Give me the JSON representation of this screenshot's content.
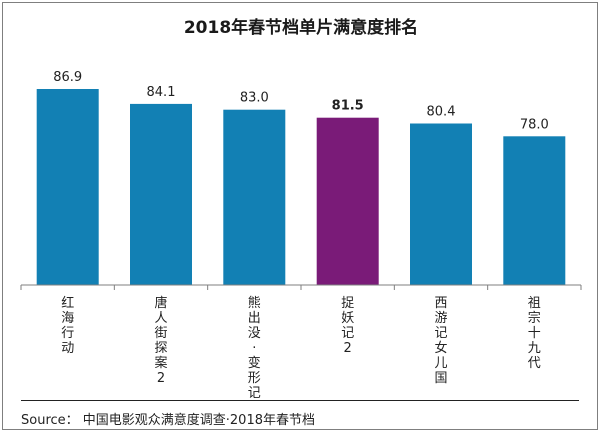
{
  "chart_data": {
    "type": "bar",
    "title": "2018年春节档单片满意度排名",
    "categories": [
      "红海行动",
      "唐人街探案2",
      "熊出没·变形记",
      "捉妖记2",
      "西游记女儿国",
      "祖宗十九代"
    ],
    "values": [
      86.9,
      84.1,
      83.0,
      81.5,
      80.4,
      78.0
    ],
    "value_labels": [
      "86.9",
      "84.1",
      "83.0",
      "81.5",
      "80.4",
      "78.0"
    ],
    "highlight_index": 3,
    "colors": {
      "default": "#1280b4",
      "highlight": "#7a1b78"
    },
    "ylim": [
      50,
      90
    ],
    "grid": false,
    "legend": "none"
  },
  "source": "Source： 中国电影观众满意度调查·2018年春节档"
}
